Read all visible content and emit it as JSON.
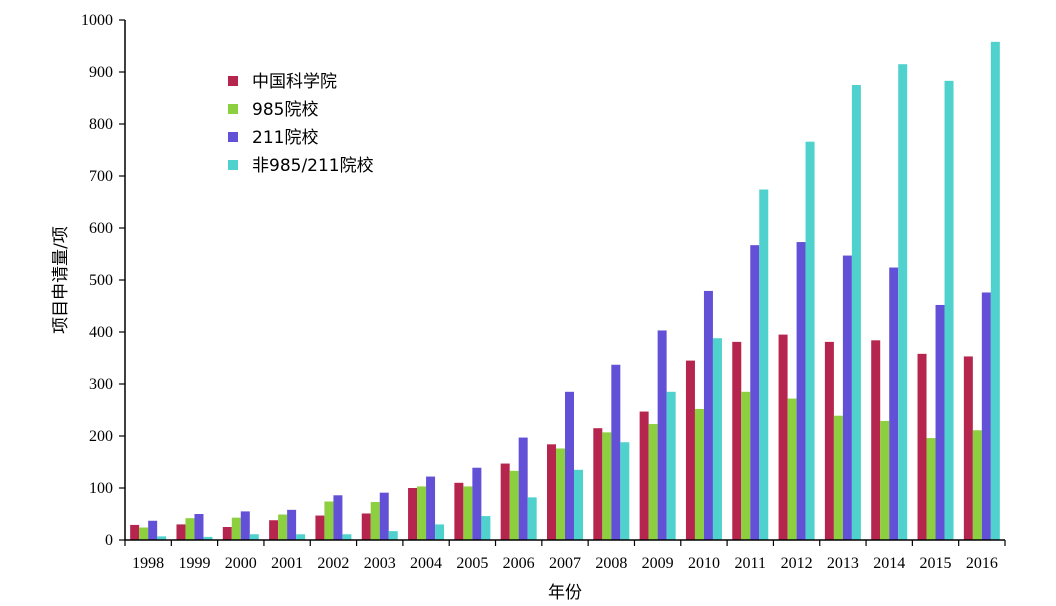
{
  "chart_data": {
    "type": "bar",
    "xlabel": "年份",
    "ylabel": "项目申请量/项",
    "ylim": [
      0,
      1000
    ],
    "yticks": [
      "0",
      "100",
      "200",
      "300",
      "400",
      "500",
      "600",
      "700",
      "800",
      "900",
      "1000"
    ],
    "categories": [
      "1998",
      "1999",
      "2000",
      "2001",
      "2002",
      "2003",
      "2004",
      "2005",
      "2006",
      "2007",
      "2008",
      "2009",
      "2010",
      "2011",
      "2012",
      "2013",
      "2014",
      "2015",
      "2016"
    ],
    "legend_position": "top-left",
    "grid": false,
    "series": [
      {
        "name": "中国科学院",
        "color": "#b5254e",
        "values": [
          29,
          30,
          25,
          38,
          47,
          51,
          100,
          110,
          147,
          184,
          215,
          247,
          345,
          381,
          395,
          381,
          384,
          358,
          353
        ]
      },
      {
        "name": "985院校",
        "color": "#8cd040",
        "values": [
          24,
          42,
          43,
          49,
          74,
          73,
          103,
          103,
          133,
          176,
          207,
          223,
          252,
          285,
          272,
          239,
          229,
          196,
          211
        ]
      },
      {
        "name": "211院校",
        "color": "#6251d6",
        "values": [
          37,
          50,
          55,
          58,
          86,
          91,
          122,
          139,
          197,
          285,
          337,
          403,
          479,
          567,
          573,
          547,
          524,
          452,
          476
        ]
      },
      {
        "name": "非985/211院校",
        "color": "#4fd2cd",
        "values": [
          7,
          6,
          11,
          11,
          11,
          17,
          30,
          46,
          82,
          135,
          188,
          285,
          388,
          674,
          766,
          875,
          915,
          883,
          958
        ]
      }
    ]
  }
}
